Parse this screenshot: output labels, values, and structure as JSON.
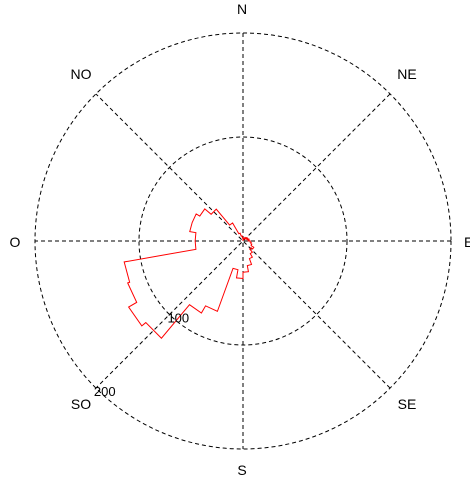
{
  "chart_data": {
    "type": "rose",
    "direction_labels": {
      "N": "N",
      "NE": "NE",
      "E": "E",
      "SE": "SE",
      "S": "S",
      "SO": "SO",
      "O": "O",
      "NO": "NO"
    },
    "radial_ticks": [
      100,
      200
    ],
    "radial_tick_labels": [
      "100",
      "200"
    ],
    "rmax": 200,
    "grid": true,
    "series": [
      {
        "color": "#ff0000",
        "sector_width_deg": 10,
        "sectors": [
          {
            "from": 0,
            "to": 10,
            "value": 2
          },
          {
            "from": 10,
            "to": 20,
            "value": 3
          },
          {
            "from": 20,
            "to": 30,
            "value": 2
          },
          {
            "from": 30,
            "to": 40,
            "value": 4
          },
          {
            "from": 40,
            "to": 50,
            "value": 3
          },
          {
            "from": 50,
            "to": 60,
            "value": 5
          },
          {
            "from": 60,
            "to": 70,
            "value": 4
          },
          {
            "from": 70,
            "to": 80,
            "value": 6
          },
          {
            "from": 80,
            "to": 90,
            "value": 5
          },
          {
            "from": 90,
            "to": 100,
            "value": 7
          },
          {
            "from": 100,
            "to": 110,
            "value": 8
          },
          {
            "from": 110,
            "to": 120,
            "value": 9
          },
          {
            "from": 120,
            "to": 130,
            "value": 12
          },
          {
            "from": 130,
            "to": 140,
            "value": 10
          },
          {
            "from": 140,
            "to": 150,
            "value": 14
          },
          {
            "from": 150,
            "to": 160,
            "value": 18
          },
          {
            "from": 160,
            "to": 170,
            "value": 24
          },
          {
            "from": 170,
            "to": 180,
            "value": 30
          },
          {
            "from": 180,
            "to": 190,
            "value": 36
          },
          {
            "from": 190,
            "to": 200,
            "value": 28
          },
          {
            "from": 200,
            "to": 210,
            "value": 72
          },
          {
            "from": 210,
            "to": 220,
            "value": 80
          },
          {
            "from": 220,
            "to": 230,
            "value": 122
          },
          {
            "from": 230,
            "to": 240,
            "value": 127
          },
          {
            "from": 240,
            "to": 250,
            "value": 118
          },
          {
            "from": 250,
            "to": 260,
            "value": 116
          },
          {
            "from": 260,
            "to": 270,
            "value": 46
          },
          {
            "from": 270,
            "to": 280,
            "value": 46
          },
          {
            "from": 280,
            "to": 290,
            "value": 52
          },
          {
            "from": 290,
            "to": 300,
            "value": 52
          },
          {
            "from": 300,
            "to": 310,
            "value": 48
          },
          {
            "from": 310,
            "to": 320,
            "value": 40
          },
          {
            "from": 320,
            "to": 330,
            "value": 20
          },
          {
            "from": 330,
            "to": 340,
            "value": 8
          },
          {
            "from": 340,
            "to": 350,
            "value": 5
          },
          {
            "from": 350,
            "to": 360,
            "value": 3
          }
        ]
      }
    ]
  }
}
